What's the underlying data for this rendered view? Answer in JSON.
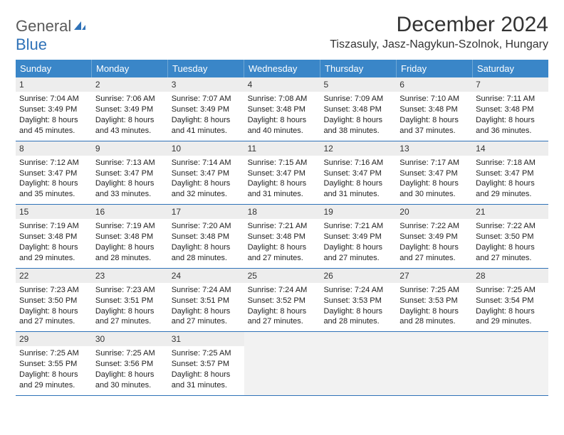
{
  "logo": {
    "general": "General",
    "blue": "Blue"
  },
  "title": "December 2024",
  "location": "Tiszasuly, Jasz-Nagykun-Szolnok, Hungary",
  "colors": {
    "header_bg": "#3A86C8",
    "header_text": "#ffffff",
    "border": "#2F72B8",
    "daynum_bg": "#EDEDED",
    "empty_bg": "#F2F2F2",
    "text": "#222222"
  },
  "weekdays": [
    "Sunday",
    "Monday",
    "Tuesday",
    "Wednesday",
    "Thursday",
    "Friday",
    "Saturday"
  ],
  "weeks": [
    [
      {
        "n": "1",
        "sr": "7:04 AM",
        "ss": "3:49 PM",
        "dl": "8 hours and 45 minutes."
      },
      {
        "n": "2",
        "sr": "7:06 AM",
        "ss": "3:49 PM",
        "dl": "8 hours and 43 minutes."
      },
      {
        "n": "3",
        "sr": "7:07 AM",
        "ss": "3:49 PM",
        "dl": "8 hours and 41 minutes."
      },
      {
        "n": "4",
        "sr": "7:08 AM",
        "ss": "3:48 PM",
        "dl": "8 hours and 40 minutes."
      },
      {
        "n": "5",
        "sr": "7:09 AM",
        "ss": "3:48 PM",
        "dl": "8 hours and 38 minutes."
      },
      {
        "n": "6",
        "sr": "7:10 AM",
        "ss": "3:48 PM",
        "dl": "8 hours and 37 minutes."
      },
      {
        "n": "7",
        "sr": "7:11 AM",
        "ss": "3:48 PM",
        "dl": "8 hours and 36 minutes."
      }
    ],
    [
      {
        "n": "8",
        "sr": "7:12 AM",
        "ss": "3:47 PM",
        "dl": "8 hours and 35 minutes."
      },
      {
        "n": "9",
        "sr": "7:13 AM",
        "ss": "3:47 PM",
        "dl": "8 hours and 33 minutes."
      },
      {
        "n": "10",
        "sr": "7:14 AM",
        "ss": "3:47 PM",
        "dl": "8 hours and 32 minutes."
      },
      {
        "n": "11",
        "sr": "7:15 AM",
        "ss": "3:47 PM",
        "dl": "8 hours and 31 minutes."
      },
      {
        "n": "12",
        "sr": "7:16 AM",
        "ss": "3:47 PM",
        "dl": "8 hours and 31 minutes."
      },
      {
        "n": "13",
        "sr": "7:17 AM",
        "ss": "3:47 PM",
        "dl": "8 hours and 30 minutes."
      },
      {
        "n": "14",
        "sr": "7:18 AM",
        "ss": "3:47 PM",
        "dl": "8 hours and 29 minutes."
      }
    ],
    [
      {
        "n": "15",
        "sr": "7:19 AM",
        "ss": "3:48 PM",
        "dl": "8 hours and 29 minutes."
      },
      {
        "n": "16",
        "sr": "7:19 AM",
        "ss": "3:48 PM",
        "dl": "8 hours and 28 minutes."
      },
      {
        "n": "17",
        "sr": "7:20 AM",
        "ss": "3:48 PM",
        "dl": "8 hours and 28 minutes."
      },
      {
        "n": "18",
        "sr": "7:21 AM",
        "ss": "3:48 PM",
        "dl": "8 hours and 27 minutes."
      },
      {
        "n": "19",
        "sr": "7:21 AM",
        "ss": "3:49 PM",
        "dl": "8 hours and 27 minutes."
      },
      {
        "n": "20",
        "sr": "7:22 AM",
        "ss": "3:49 PM",
        "dl": "8 hours and 27 minutes."
      },
      {
        "n": "21",
        "sr": "7:22 AM",
        "ss": "3:50 PM",
        "dl": "8 hours and 27 minutes."
      }
    ],
    [
      {
        "n": "22",
        "sr": "7:23 AM",
        "ss": "3:50 PM",
        "dl": "8 hours and 27 minutes."
      },
      {
        "n": "23",
        "sr": "7:23 AM",
        "ss": "3:51 PM",
        "dl": "8 hours and 27 minutes."
      },
      {
        "n": "24",
        "sr": "7:24 AM",
        "ss": "3:51 PM",
        "dl": "8 hours and 27 minutes."
      },
      {
        "n": "25",
        "sr": "7:24 AM",
        "ss": "3:52 PM",
        "dl": "8 hours and 27 minutes."
      },
      {
        "n": "26",
        "sr": "7:24 AM",
        "ss": "3:53 PM",
        "dl": "8 hours and 28 minutes."
      },
      {
        "n": "27",
        "sr": "7:25 AM",
        "ss": "3:53 PM",
        "dl": "8 hours and 28 minutes."
      },
      {
        "n": "28",
        "sr": "7:25 AM",
        "ss": "3:54 PM",
        "dl": "8 hours and 29 minutes."
      }
    ],
    [
      {
        "n": "29",
        "sr": "7:25 AM",
        "ss": "3:55 PM",
        "dl": "8 hours and 29 minutes."
      },
      {
        "n": "30",
        "sr": "7:25 AM",
        "ss": "3:56 PM",
        "dl": "8 hours and 30 minutes."
      },
      {
        "n": "31",
        "sr": "7:25 AM",
        "ss": "3:57 PM",
        "dl": "8 hours and 31 minutes."
      },
      {
        "empty": true
      },
      {
        "empty": true
      },
      {
        "empty": true
      },
      {
        "empty": true
      }
    ]
  ],
  "labels": {
    "sunrise": "Sunrise: ",
    "sunset": "Sunset: ",
    "daylight": "Daylight: "
  }
}
